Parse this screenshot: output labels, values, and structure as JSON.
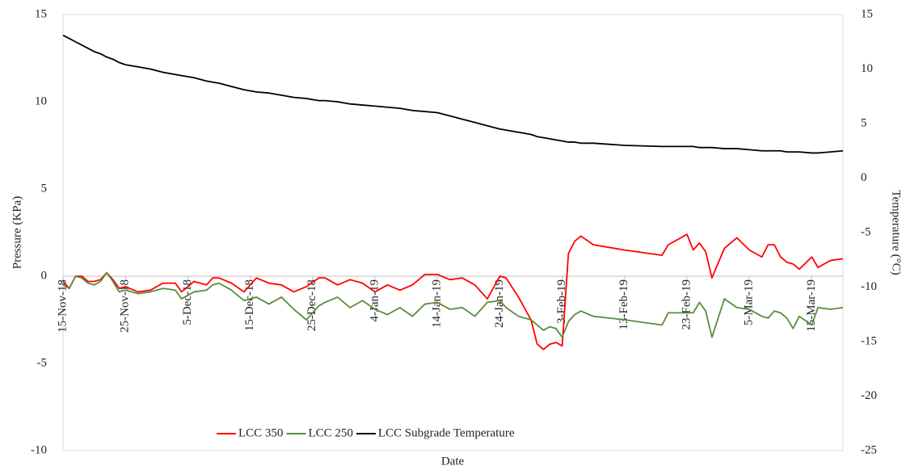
{
  "chart_data": {
    "type": "line",
    "x_label": "Date",
    "y_label": "Pressure (KPa)",
    "y2_label": "Temperature (°C)",
    "x": [
      "2018-11-15",
      "2018-11-16",
      "2018-11-17",
      "2018-11-18",
      "2018-11-19",
      "2018-11-20",
      "2018-11-21",
      "2018-11-22",
      "2018-11-23",
      "2018-11-24",
      "2018-11-25",
      "2018-11-27",
      "2018-11-29",
      "2018-12-01",
      "2018-12-03",
      "2018-12-04",
      "2018-12-06",
      "2018-12-08",
      "2018-12-09",
      "2018-12-10",
      "2018-12-12",
      "2018-12-14",
      "2018-12-16",
      "2018-12-18",
      "2018-12-20",
      "2018-12-22",
      "2018-12-24",
      "2018-12-26",
      "2018-12-27",
      "2018-12-29",
      "2018-12-31",
      "2019-01-02",
      "2019-01-04",
      "2019-01-06",
      "2019-01-08",
      "2019-01-10",
      "2019-01-12",
      "2019-01-14",
      "2019-01-16",
      "2019-01-18",
      "2019-01-20",
      "2019-01-22",
      "2019-01-24",
      "2019-01-25",
      "2019-01-27",
      "2019-01-29",
      "2019-01-30",
      "2019-01-31",
      "2019-02-01",
      "2019-02-02",
      "2019-02-03",
      "2019-02-04",
      "2019-02-05",
      "2019-02-06",
      "2019-02-08",
      "2019-02-13",
      "2019-02-19",
      "2019-02-20",
      "2019-02-23",
      "2019-02-24",
      "2019-02-25",
      "2019-02-26",
      "2019-02-27",
      "2019-03-01",
      "2019-03-03",
      "2019-03-05",
      "2019-03-07",
      "2019-03-08",
      "2019-03-09",
      "2019-03-10",
      "2019-03-11",
      "2019-03-12",
      "2019-03-13",
      "2019-03-15",
      "2019-03-16",
      "2019-03-18",
      "2019-03-20"
    ],
    "series": [
      {
        "name": "LCC 350",
        "color": "#ff0000",
        "axis": "y",
        "values": [
          -0.3,
          -0.7,
          0.0,
          0.0,
          -0.3,
          -0.3,
          -0.2,
          0.2,
          -0.2,
          -0.7,
          -0.6,
          -0.9,
          -0.8,
          -0.4,
          -0.4,
          -0.9,
          -0.3,
          -0.5,
          -0.1,
          -0.1,
          -0.4,
          -0.9,
          -0.1,
          -0.4,
          -0.5,
          -0.9,
          -0.6,
          -0.1,
          -0.1,
          -0.5,
          -0.2,
          -0.4,
          -0.9,
          -0.5,
          -0.8,
          -0.5,
          0.1,
          0.1,
          -0.2,
          -0.1,
          -0.5,
          -1.3,
          0.0,
          -0.1,
          -1.2,
          -2.5,
          -3.9,
          -4.2,
          -3.9,
          -3.8,
          -4.0,
          1.3,
          2.0,
          2.3,
          1.8,
          1.5,
          1.2,
          1.8,
          2.4,
          1.5,
          1.9,
          1.4,
          -0.1,
          1.6,
          2.2,
          1.5,
          1.1,
          1.8,
          1.8,
          1.1,
          0.8,
          0.7,
          0.4,
          1.1,
          0.5,
          0.9,
          1.0
        ]
      },
      {
        "name": "LCC 250",
        "color": "#5b8c3a",
        "axis": "y",
        "values": [
          -0.5,
          -0.7,
          0.0,
          -0.1,
          -0.4,
          -0.5,
          -0.3,
          0.2,
          -0.3,
          -0.9,
          -0.8,
          -1.0,
          -0.9,
          -0.7,
          -0.8,
          -1.3,
          -0.9,
          -0.8,
          -0.5,
          -0.4,
          -0.8,
          -1.4,
          -1.2,
          -1.6,
          -1.2,
          -1.9,
          -2.5,
          -1.7,
          -1.5,
          -1.2,
          -1.8,
          -1.4,
          -1.9,
          -2.2,
          -1.8,
          -2.3,
          -1.6,
          -1.5,
          -1.9,
          -1.8,
          -2.3,
          -1.5,
          -1.4,
          -1.8,
          -2.3,
          -2.5,
          -2.8,
          -3.1,
          -2.9,
          -3.0,
          -3.5,
          -2.6,
          -2.2,
          -2.0,
          -2.3,
          -2.5,
          -2.8,
          -2.1,
          -2.1,
          -2.1,
          -1.5,
          -2.0,
          -3.5,
          -1.3,
          -1.8,
          -1.9,
          -2.3,
          -2.4,
          -2.0,
          -2.1,
          -2.4,
          -3.0,
          -2.3,
          -2.8,
          -1.8,
          -1.9,
          -1.8
        ]
      },
      {
        "name": "LCC Subgrade Temperature",
        "color": "#000000",
        "axis": "y2",
        "values": [
          13.1,
          12.8,
          12.5,
          12.2,
          11.9,
          11.6,
          11.4,
          11.1,
          10.9,
          10.6,
          10.4,
          10.2,
          10.0,
          9.7,
          9.5,
          9.4,
          9.2,
          8.9,
          8.8,
          8.7,
          8.4,
          8.1,
          7.9,
          7.8,
          7.6,
          7.4,
          7.3,
          7.1,
          7.1,
          7.0,
          6.8,
          6.7,
          6.6,
          6.5,
          6.4,
          6.2,
          6.1,
          6.0,
          5.7,
          5.4,
          5.1,
          4.8,
          4.5,
          4.4,
          4.2,
          4.0,
          3.8,
          3.7,
          3.6,
          3.5,
          3.4,
          3.3,
          3.3,
          3.2,
          3.2,
          3.0,
          2.9,
          2.9,
          2.9,
          2.9,
          2.8,
          2.8,
          2.8,
          2.7,
          2.7,
          2.6,
          2.5,
          2.5,
          2.5,
          2.5,
          2.4,
          2.4,
          2.4,
          2.3,
          2.3,
          2.4,
          2.5
        ]
      }
    ],
    "xlim": [
      "2018-11-15",
      "2019-03-20"
    ],
    "xticks": [
      {
        "value": "2018-11-15",
        "label": "15-Nov-18"
      },
      {
        "value": "2018-11-25",
        "label": "25-Nov-18"
      },
      {
        "value": "2018-12-05",
        "label": "5-Dec-18"
      },
      {
        "value": "2018-12-15",
        "label": "15-Dec-18"
      },
      {
        "value": "2018-12-25",
        "label": "25-Dec-18"
      },
      {
        "value": "2019-01-04",
        "label": "4-Jan-19"
      },
      {
        "value": "2019-01-14",
        "label": "14-Jan-19"
      },
      {
        "value": "2019-01-24",
        "label": "24-Jan-19"
      },
      {
        "value": "2019-02-03",
        "label": "3-Feb-19"
      },
      {
        "value": "2019-02-13",
        "label": "13-Feb-19"
      },
      {
        "value": "2019-02-23",
        "label": "23-Feb-19"
      },
      {
        "value": "2019-03-05",
        "label": "5-Mar-19"
      },
      {
        "value": "2019-03-15",
        "label": "15-Mar-19"
      }
    ],
    "ylim": [
      -10,
      15
    ],
    "yticks": [
      -10,
      -5,
      0,
      5,
      10,
      15
    ],
    "y2lim": [
      -25,
      15
    ],
    "y2ticks": [
      -25,
      -20,
      -15,
      -10,
      -5,
      0,
      5,
      10,
      15
    ],
    "grid": false,
    "legend": "bottom"
  }
}
